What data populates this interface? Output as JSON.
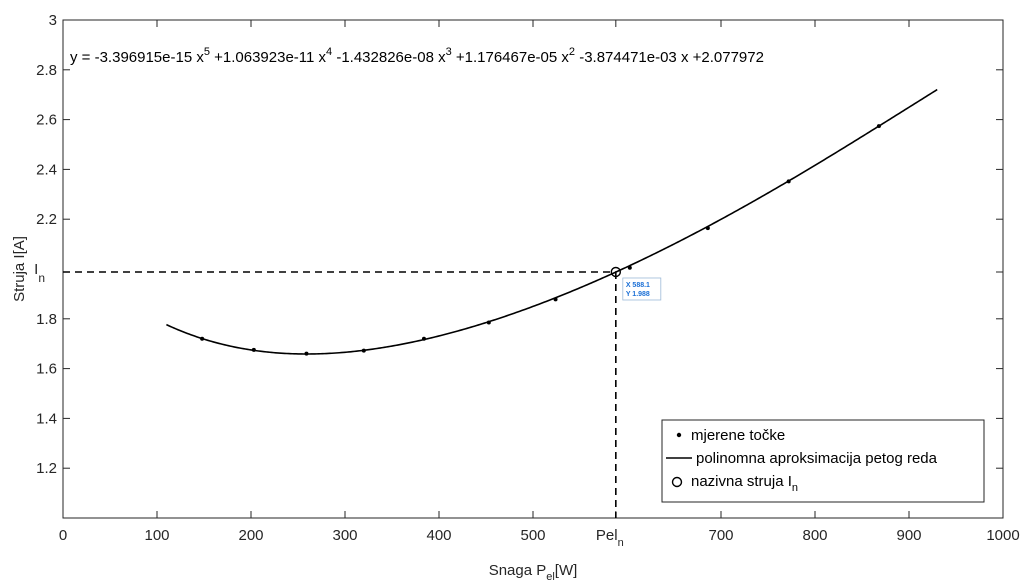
{
  "chart_data": {
    "type": "line",
    "equation": {
      "prefix": "y = -3.396915e-15 x",
      "e1": "5",
      "t2": " +1.063923e-11 x",
      "e2": "4",
      "t3": " -1.432826e-08 x",
      "e3": "3",
      "t4": " +1.176467e-05 x",
      "e4": "2",
      "t5": " -3.874471e-03 x +2.077972"
    },
    "xlabel": {
      "base": "Snaga P",
      "sub": "el",
      "tail": "[W]"
    },
    "ylabel": "Struja I[A]",
    "xlim": [
      0,
      1000
    ],
    "ylim": [
      1,
      3
    ],
    "xticks": [
      0,
      100,
      200,
      300,
      400,
      500,
      700,
      800,
      900,
      1000
    ],
    "xtick_labels": [
      "0",
      "100",
      "200",
      "300",
      "400",
      "500",
      "700",
      "800",
      "900",
      "1000"
    ],
    "yticks": [
      1.2,
      1.4,
      1.6,
      1.8,
      2.2,
      2.4,
      2.6,
      2.8,
      3
    ],
    "ytick_labels": [
      "1.2",
      "1.4",
      "1.6",
      "1.8",
      "2.2",
      "2.4",
      "2.6",
      "2.8",
      "3"
    ],
    "special_x": {
      "value": 588.1,
      "base": "Pel",
      "sub": "n"
    },
    "special_y": {
      "value": 1.988,
      "base": "I",
      "sub": "n"
    },
    "coefficients": [
      -3.396915e-15,
      1.063923e-11,
      -1.432826e-08,
      1.176467e-05,
      -0.003874471,
      2.077972
    ],
    "fit_range": [
      110,
      930
    ],
    "series": [
      {
        "name": "mjerene točke",
        "kind": "markers",
        "x": [
          148,
          203,
          259,
          320,
          384,
          453,
          524,
          603,
          686,
          772,
          868
        ],
        "y": [
          1.72,
          1.675,
          1.66,
          1.672,
          1.72,
          1.785,
          1.878,
          2.005,
          2.164,
          2.352,
          2.574
        ]
      },
      {
        "name": "polinomna aproksimacija petog reda",
        "kind": "line"
      },
      {
        "name": "nazivna struja I",
        "name_sub": "n",
        "kind": "circle",
        "x": [
          588.1
        ],
        "y": [
          1.988
        ]
      }
    ],
    "datatip": {
      "x_label": "X 588.1",
      "y_label": "Y 1.988"
    },
    "legend_position": "bottom-right",
    "grid": false
  }
}
